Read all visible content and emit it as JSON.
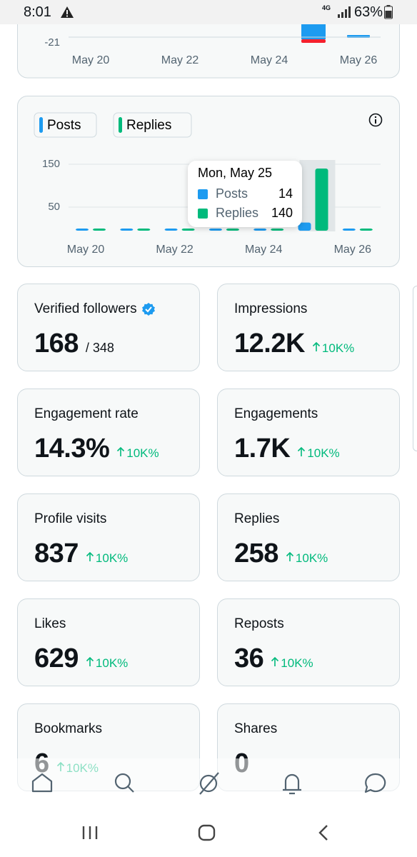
{
  "status_bar": {
    "time": "8:01",
    "network": "4G",
    "battery": "63%"
  },
  "top_chart": {
    "yticks": [
      -21
    ],
    "categories": [
      "May 20",
      "May 22",
      "May 24",
      "May 26"
    ]
  },
  "engagement_chart": {
    "type": "bar",
    "categories": [
      "May 20",
      null,
      "May 22",
      null,
      "May 24",
      null,
      "May 26"
    ],
    "series": [
      {
        "name": "Posts",
        "color": "#1d9bf0",
        "values": [
          0,
          0,
          0,
          0,
          0,
          14,
          0
        ]
      },
      {
        "name": "Replies",
        "color": "#00ba7c",
        "values": [
          0,
          0,
          0,
          0,
          0,
          140,
          0
        ]
      }
    ],
    "ylim": [
      0,
      150
    ],
    "yticks": [
      50,
      150
    ],
    "grid": true,
    "tooltip": {
      "title": "Mon, May 25",
      "highlighted_index": 5
    }
  },
  "metrics": [
    {
      "label": "Verified followers",
      "value": "168",
      "total": "/ 348",
      "verified": true
    },
    {
      "label": "Impressions",
      "value": "12.2K",
      "change": "10K%"
    },
    {
      "label": "Engagement rate",
      "value": "14.3%",
      "change": "10K%"
    },
    {
      "label": "Engagements",
      "value": "1.7K",
      "change": "10K%"
    },
    {
      "label": "Profile visits",
      "value": "837",
      "change": "10K%"
    },
    {
      "label": "Replies",
      "value": "258",
      "change": "10K%"
    },
    {
      "label": "Likes",
      "value": "629",
      "change": "10K%"
    },
    {
      "label": "Reposts",
      "value": "36",
      "change": "10K%"
    },
    {
      "label": "Bookmarks",
      "value": "6",
      "change": "10K%"
    },
    {
      "label": "Shares",
      "value": "0"
    }
  ]
}
